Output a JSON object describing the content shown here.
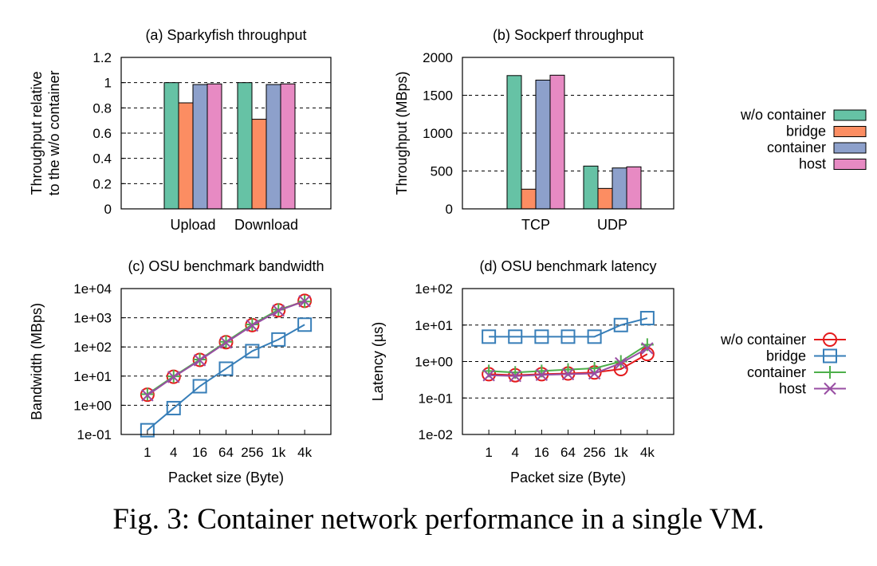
{
  "caption": "Fig. 3: Container network performance in a single VM.",
  "colors": {
    "bar": [
      "#66c2a5",
      "#fc8d62",
      "#8da0cb",
      "#e78ac3"
    ],
    "line": [
      "#e41a1c",
      "#377eb8",
      "#4daf4a",
      "#984ea3"
    ]
  },
  "bar_legend": [
    "w/o container",
    "bridge",
    "container",
    "host"
  ],
  "line_legend": [
    "w/o container",
    "bridge",
    "container",
    "host"
  ],
  "chart_data": [
    {
      "id": "a",
      "type": "bar",
      "title": "(a) Sparkyfish throughput",
      "ylabel": [
        "Throughput relative",
        "to the w/o container"
      ],
      "xlabel": "",
      "ylim": [
        0,
        1.2
      ],
      "yticks": [
        "0",
        "0.2",
        "0.4",
        "0.6",
        "0.8",
        "1",
        "1.2"
      ],
      "categories": [
        "Upload",
        "Download"
      ],
      "series": [
        {
          "name": "w/o container",
          "values": [
            1.0,
            1.0
          ]
        },
        {
          "name": "bridge",
          "values": [
            0.84,
            0.71
          ]
        },
        {
          "name": "container",
          "values": [
            0.985,
            0.985
          ]
        },
        {
          "name": "host",
          "values": [
            0.99,
            0.99
          ]
        }
      ]
    },
    {
      "id": "b",
      "type": "bar",
      "title": "(b) Sockperf throughput",
      "ylabel": [
        "Throughput (MBps)"
      ],
      "xlabel": "",
      "ylim": [
        0,
        2000
      ],
      "yticks": [
        "0",
        "500",
        "1000",
        "1500",
        "2000"
      ],
      "categories": [
        "TCP",
        "UDP"
      ],
      "series": [
        {
          "name": "w/o container",
          "values": [
            1760,
            565
          ]
        },
        {
          "name": "bridge",
          "values": [
            260,
            270
          ]
        },
        {
          "name": "container",
          "values": [
            1700,
            540
          ]
        },
        {
          "name": "host",
          "values": [
            1765,
            555
          ]
        }
      ]
    },
    {
      "id": "c",
      "type": "line",
      "yscale": "log",
      "title": "(c) OSU benchmark bandwidth",
      "ylabel": [
        "Bandwidth (MBps)"
      ],
      "xlabel": "Packet size (Byte)",
      "ylim": [
        0.1,
        10000
      ],
      "yticks": [
        "1e-01",
        "1e+00",
        "1e+01",
        "1e+02",
        "1e+03",
        "1e+04"
      ],
      "categories": [
        "1",
        "4",
        "16",
        "64",
        "256",
        "1k",
        "4k"
      ],
      "series": [
        {
          "name": "w/o container",
          "values": [
            2.3,
            9.5,
            36,
            145,
            560,
            1800,
            3800
          ]
        },
        {
          "name": "bridge",
          "values": [
            0.14,
            0.8,
            4.5,
            18,
            72,
            180,
            580
          ]
        },
        {
          "name": "container",
          "values": [
            2.4,
            9.8,
            37,
            150,
            590,
            1900,
            3600
          ]
        },
        {
          "name": "host",
          "values": [
            2.2,
            9.3,
            35,
            140,
            540,
            1750,
            3700
          ]
        }
      ]
    },
    {
      "id": "d",
      "type": "line",
      "yscale": "log",
      "title": "(d) OSU benchmark latency",
      "ylabel": [
        "Latency (µs)"
      ],
      "xlabel": "Packet size (Byte)",
      "ylim": [
        0.01,
        100
      ],
      "yticks": [
        "1e-02",
        "1e-01",
        "1e+00",
        "1e+01",
        "1e+02"
      ],
      "categories": [
        "1",
        "4",
        "16",
        "64",
        "256",
        "1k",
        "4k"
      ],
      "series": [
        {
          "name": "w/o container",
          "values": [
            0.45,
            0.42,
            0.45,
            0.47,
            0.5,
            0.62,
            1.6
          ]
        },
        {
          "name": "bridge",
          "values": [
            4.8,
            4.8,
            4.8,
            4.8,
            4.8,
            10,
            15.5
          ]
        },
        {
          "name": "container",
          "values": [
            0.55,
            0.5,
            0.55,
            0.6,
            0.65,
            1.0,
            2.9
          ]
        },
        {
          "name": "host",
          "values": [
            0.42,
            0.4,
            0.43,
            0.45,
            0.47,
            0.9,
            2.3
          ]
        }
      ]
    }
  ]
}
